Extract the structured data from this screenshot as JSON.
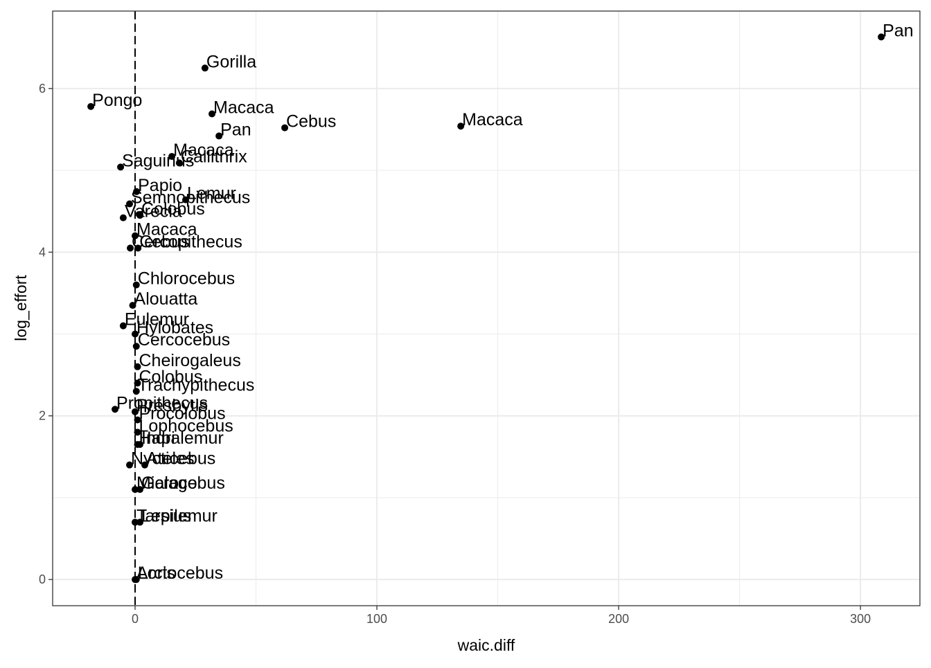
{
  "chart_data": {
    "type": "scatter",
    "xlabel": "waic.diff",
    "ylabel": "log_effort",
    "xlim": [
      -34.1,
      324.6
    ],
    "ylim": [
      -0.32,
      6.946
    ],
    "xticks": [
      0,
      100,
      200,
      300
    ],
    "yticks": [
      0,
      2,
      4,
      6
    ],
    "xminor": [
      50,
      150,
      250
    ],
    "yminor": [
      1,
      3,
      5
    ],
    "vline": 0,
    "grid": true,
    "color": "#000000",
    "labels": [
      "Pan",
      "Gorilla",
      "Pongo",
      "Macaca",
      "Cebus",
      "Macaca",
      "Pan",
      "Macaca",
      "Callithrix",
      "Saguinus",
      "Papio",
      "Lemur",
      "Semnopithecus",
      "Varecia",
      "Colobus",
      "Macaca",
      "Cebus",
      "Cercopithecus",
      "Chlorocebus",
      "Alouatta",
      "Eulemur",
      "Hylobates",
      "Cercocebus",
      "Cheirogaleus",
      "Colobus",
      "Trachypithecus",
      "Propithecus",
      "Presbytis",
      "Procolobus",
      "Lophocebus",
      "Hapalemur",
      "Indri",
      "Nycticebus",
      "Ateles",
      "Microcebus",
      "Galago",
      "Tarsius",
      "Lepilemur",
      "Arctocebus",
      "Loris"
    ],
    "x": [
      308.6,
      28.9,
      -18.3,
      31.8,
      61.9,
      134.7,
      34.7,
      15.2,
      18.3,
      -6.0,
      0.6,
      20.9,
      -2.3,
      -4.9,
      2.0,
      0,
      1.2,
      -2.0,
      0.5,
      -1.0,
      -4.9,
      0,
      0.5,
      1.0,
      1.0,
      0.5,
      -8.3,
      0,
      1.0,
      1.0,
      1.0,
      2.0,
      -2.3,
      4.0,
      0,
      2.0,
      0,
      2.0,
      0,
      0.5
    ],
    "values": [
      6.63,
      6.25,
      5.78,
      5.69,
      5.52,
      5.54,
      5.42,
      5.17,
      5.09,
      5.04,
      4.74,
      4.64,
      4.59,
      4.42,
      4.45,
      4.2,
      4.05,
      4.05,
      3.6,
      3.35,
      3.1,
      3.0,
      2.85,
      2.6,
      2.4,
      2.3,
      2.08,
      2.05,
      1.95,
      1.8,
      1.65,
      1.65,
      1.4,
      1.4,
      1.1,
      1.1,
      0.7,
      0.7,
      0,
      0
    ]
  }
}
